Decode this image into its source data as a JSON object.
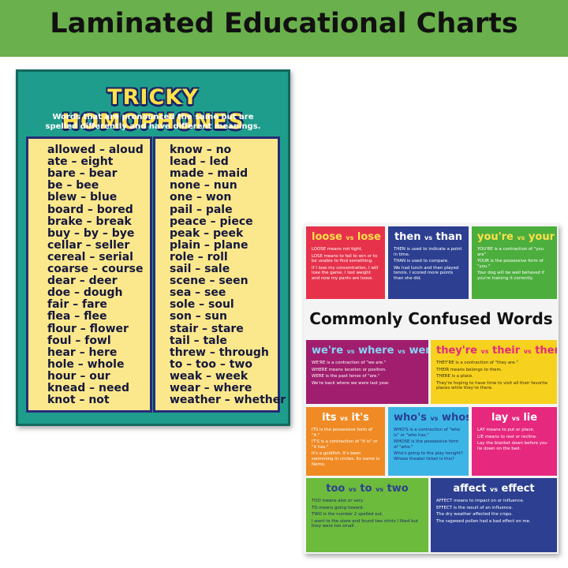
{
  "header": {
    "title": "Laminated Educational Charts"
  },
  "homophones_chart": {
    "title": "TRICKY HOMOPHONES",
    "subtitle": "Words that are pronounced the same but are spelled differently and have different meanings.",
    "columns": [
      [
        "allowed – aloud",
        "ate – eight",
        "bare – bear",
        "be – bee",
        "blew – blue",
        "board – bored",
        "brake – break",
        "buy – by – bye",
        "cellar – seller",
        "cereal – serial",
        "coarse – course",
        "dear – deer",
        "doe – dough",
        "fair – fare",
        "flea – flee",
        "flour – flower",
        "foul – fowl",
        "hear – here",
        "hole – whole",
        "hour – our",
        "knead – need",
        "knot – not"
      ],
      [
        "know – no",
        "lead – led",
        "made – maid",
        "none – nun",
        "one – won",
        "pail – pale",
        "peace – piece",
        "peak – peek",
        "plain – plane",
        "role – roll",
        "sail – sale",
        "scene – seen",
        "sea – see",
        "sole – soul",
        "son – sun",
        "stair – stare",
        "tail – tale",
        "threw – through",
        "to – too – two",
        "weak – week",
        "wear – where",
        "weather – whether"
      ]
    ]
  },
  "confused_words_chart": {
    "title": "Commonly Confused Words",
    "panels": [
      {
        "heading": [
          "loose",
          "vs",
          "lose"
        ],
        "lines": [
          "LOOSE means not tight.",
          "LOSE means to fail to win or to be unable to find something.",
          "If I lose my concentration, I will lose the game. I lost weight and now my pants are loose."
        ]
      },
      {
        "heading": [
          "then",
          "vs",
          "than"
        ],
        "lines": [
          "THEN is used to indicate a point in time.",
          "THAN is used to compare.",
          "We had lunch and then played tennis. I scored more points than she did."
        ]
      },
      {
        "heading": [
          "you're",
          "vs",
          "your"
        ],
        "lines": [
          "YOU'RE is a contraction of \"you are\"",
          "YOUR is the possessive form of \"you.\"",
          "Your dog will be well behaved if you're training it correctly."
        ]
      },
      {
        "heading": [
          "we're",
          "vs",
          "where",
          "vs",
          "were"
        ],
        "lines": [
          "WE'RE is a contraction of \"we are.\"",
          "WHERE means location or position.",
          "WERE is the past tense of \"are.\"",
          "We're back where we were last year."
        ]
      },
      {
        "heading": [
          "they're",
          "vs",
          "their",
          "vs",
          "there"
        ],
        "lines": [
          "THEY'RE is a contraction of \"they are.\"",
          "THEIR means belongs to them.",
          "THERE is a place.",
          "They're hoping to have time to visit all their favorite places while they're there."
        ]
      },
      {
        "heading": [
          "its",
          "vs",
          "it's"
        ],
        "lines": [
          "ITS is the possessive form of \"it.\"",
          "IT'S is a contraction of \"it is\" or \"it has.\"",
          "It's a goldfish. It's been swimming in circles. Its name is Nemo."
        ]
      },
      {
        "heading": [
          "who's",
          "vs",
          "whose"
        ],
        "lines": [
          "WHO'S is a contraction of \"who is\" or \"who has.\"",
          "WHOSE is the possessive form of \"who.\"",
          "Who's going to the play tonight? Whose theater ticket is this?"
        ]
      },
      {
        "heading": [
          "lay",
          "vs",
          "lie"
        ],
        "lines": [
          "LAY means to put or place.",
          "LIE means to rest or recline.",
          "Lay the blanket down before you lie down on the bed."
        ]
      },
      {
        "heading": [
          "too",
          "vs",
          "to",
          "vs",
          "two"
        ],
        "lines": [
          "TOO means also or very.",
          "TO means going toward.",
          "TWO is the number 2 spelled out.",
          "I went to the store and found two shirts I liked but they were too small."
        ]
      },
      {
        "heading": [
          "affect",
          "vs",
          "effect"
        ],
        "lines": [
          "AFFECT means to impact on or influence.",
          "EFFECT is the result of an influence.",
          "The dry weather affected the crops.",
          "The ragweed pollen had a bad effect on me."
        ]
      }
    ]
  }
}
